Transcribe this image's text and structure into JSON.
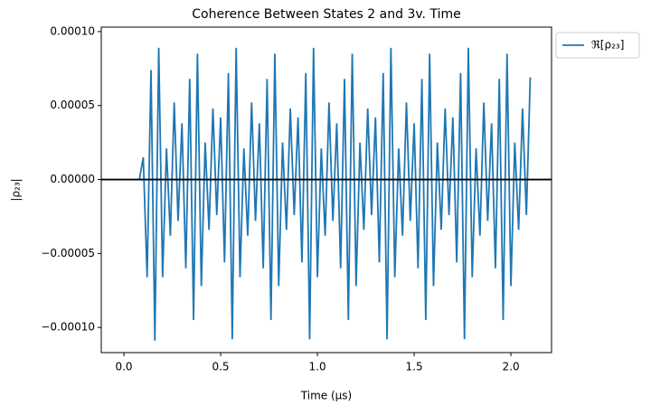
{
  "chart_data": {
    "type": "line",
    "title": "Coherence Between States 2 and 3v. Time",
    "xlabel": "Time (μs)",
    "ylabel": "|ρ₂₃|",
    "x": [
      0.08,
      0.1,
      0.12,
      0.14,
      0.16,
      0.18,
      0.2,
      0.22,
      0.24,
      0.26,
      0.28,
      0.3,
      0.32,
      0.34,
      0.36,
      0.38,
      0.4,
      0.42,
      0.44,
      0.46,
      0.48,
      0.5,
      0.52,
      0.54,
      0.56,
      0.58,
      0.6,
      0.62,
      0.64,
      0.66,
      0.68,
      0.7,
      0.72,
      0.74,
      0.76,
      0.78,
      0.8,
      0.82,
      0.84,
      0.86,
      0.88,
      0.9,
      0.92,
      0.94,
      0.96,
      0.98,
      1.0,
      1.02,
      1.04,
      1.06,
      1.08,
      1.1,
      1.12,
      1.14,
      1.16,
      1.18,
      1.2,
      1.22,
      1.24,
      1.26,
      1.28,
      1.3,
      1.32,
      1.34,
      1.36,
      1.38,
      1.4,
      1.42,
      1.44,
      1.46,
      1.48,
      1.5,
      1.52,
      1.54,
      1.56,
      1.58,
      1.6,
      1.62,
      1.64,
      1.66,
      1.68,
      1.7,
      1.72,
      1.74,
      1.76,
      1.78,
      1.8,
      1.82,
      1.84,
      1.86,
      1.88,
      1.9,
      1.92,
      1.94,
      1.96,
      1.98,
      2.0,
      2.02,
      2.04,
      2.06,
      2.08,
      2.1
    ],
    "series": [
      {
        "name": "ℜ[ρ₂₃]",
        "color": "#1f77b4",
        "values": [
          0,
          1.5e-05,
          -6.6e-05,
          7.4e-05,
          -0.000109,
          8.9e-05,
          -6.6e-05,
          2.1e-05,
          -3.8e-05,
          5.2e-05,
          -2.8e-05,
          3.8e-05,
          -6e-05,
          6.8e-05,
          -9.5e-05,
          8.5e-05,
          -7.2e-05,
          2.5e-05,
          -3.4e-05,
          4.8e-05,
          -2.4e-05,
          4.2e-05,
          -5.6e-05,
          7.2e-05,
          -0.000108,
          8.9e-05,
          -6.6e-05,
          2.1e-05,
          -3.8e-05,
          5.2e-05,
          -2.8e-05,
          3.8e-05,
          -6e-05,
          6.8e-05,
          -9.5e-05,
          8.5e-05,
          -7.2e-05,
          2.5e-05,
          -3.4e-05,
          4.8e-05,
          -2.4e-05,
          4.2e-05,
          -5.6e-05,
          7.2e-05,
          -0.000108,
          8.9e-05,
          -6.6e-05,
          2.1e-05,
          -3.8e-05,
          5.2e-05,
          -2.8e-05,
          3.8e-05,
          -6e-05,
          6.8e-05,
          -9.5e-05,
          8.5e-05,
          -7.2e-05,
          2.5e-05,
          -3.4e-05,
          4.8e-05,
          -2.4e-05,
          4.2e-05,
          -5.6e-05,
          7.2e-05,
          -0.000108,
          8.9e-05,
          -6.6e-05,
          2.1e-05,
          -3.8e-05,
          5.2e-05,
          -2.8e-05,
          3.8e-05,
          -6e-05,
          6.8e-05,
          -9.5e-05,
          8.5e-05,
          -7.2e-05,
          2.5e-05,
          -3.4e-05,
          4.8e-05,
          -2.4e-05,
          4.2e-05,
          -5.6e-05,
          7.2e-05,
          -0.000108,
          8.9e-05,
          -6.6e-05,
          2.1e-05,
          -3.8e-05,
          5.2e-05,
          -2.8e-05,
          3.8e-05,
          -6e-05,
          6.8e-05,
          -9.5e-05,
          8.5e-05,
          -7.2e-05,
          2.5e-05,
          -3.4e-05,
          4.8e-05,
          -2.4e-05,
          6.9e-05
        ]
      }
    ],
    "hline": 0,
    "xlim": [
      -0.117,
      2.21
    ],
    "xticks": [
      {
        "value": 0,
        "label": "0.0"
      },
      0.5,
      {
        "value": 1,
        "label": "1.0"
      },
      1.5,
      {
        "value": 2,
        "label": "2.0"
      }
    ],
    "ylim": [
      -0.000117,
      0.000103
    ],
    "yticks": [
      {
        "value": -0.0001,
        "label": "−0.00010"
      },
      {
        "value": -5e-05,
        "label": "−0.00005"
      },
      {
        "value": 0,
        "label": "0.00000"
      },
      {
        "value": 5e-05,
        "label": "0.00005"
      },
      {
        "value": 0.0001,
        "label": "0.00010"
      }
    ],
    "legend": "upper-right-outside"
  }
}
